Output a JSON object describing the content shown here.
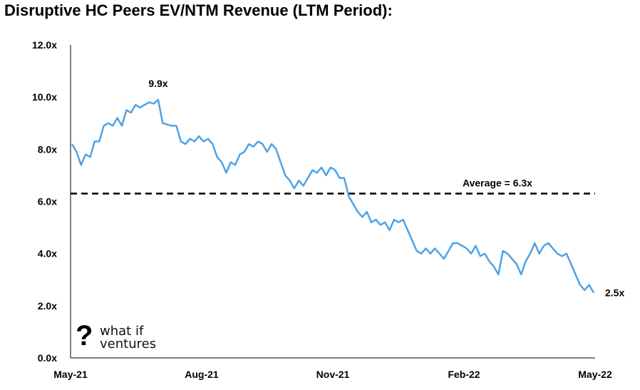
{
  "chart_data": {
    "type": "line",
    "title": "Disruptive HC Peers EV/NTM Revenue (LTM Period):",
    "xlabel": "",
    "ylabel": "",
    "x_ticks": [
      "May-21",
      "Aug-21",
      "Nov-21",
      "Feb-22",
      "May-22"
    ],
    "y_ticks": [
      "0.0x",
      "2.0x",
      "4.0x",
      "6.0x",
      "8.0x",
      "10.0x",
      "12.0x"
    ],
    "ylim": [
      0,
      12
    ],
    "x_range": [
      "May-21",
      "May-22"
    ],
    "grid": false,
    "line_color": "#4da3e8",
    "series": [
      {
        "values": [
          8.2,
          7.9,
          7.4,
          7.8,
          7.7,
          8.3,
          8.3,
          8.9,
          9.0,
          8.9,
          9.2,
          8.9,
          9.5,
          9.4,
          9.7,
          9.6,
          9.7,
          9.8,
          9.75,
          9.9,
          9.0,
          8.95,
          8.9,
          8.9,
          8.3,
          8.2,
          8.4,
          8.3,
          8.5,
          8.3,
          8.4,
          8.2,
          7.7,
          7.5,
          7.1,
          7.5,
          7.4,
          7.8,
          7.9,
          8.2,
          8.1,
          8.3,
          8.2,
          7.9,
          8.2,
          8.0,
          7.5,
          7.0,
          6.8,
          6.5,
          6.8,
          6.6,
          6.9,
          7.2,
          7.1,
          7.3,
          7.0,
          7.3,
          7.2,
          6.9,
          6.9,
          6.2,
          5.9,
          5.6,
          5.4,
          5.6,
          5.2,
          5.3,
          5.1,
          5.2,
          4.9,
          5.3,
          5.2,
          5.3,
          4.9,
          4.5,
          4.1,
          4.0,
          4.2,
          4.0,
          4.2,
          4.0,
          3.8,
          4.1,
          4.4,
          4.4,
          4.3,
          4.2,
          4.0,
          4.3,
          3.9,
          4.0,
          3.7,
          3.5,
          3.2,
          4.1,
          4.0,
          3.8,
          3.6,
          3.2,
          3.7,
          4.0,
          4.4,
          4.0,
          4.3,
          4.4,
          4.2,
          4.0,
          3.9,
          4.0,
          3.6,
          3.2,
          2.8,
          2.6,
          2.8,
          2.5
        ]
      },
      {
        "name": "Average = 6.3x",
        "type": "reference_line",
        "value": 6.3
      }
    ],
    "annotations": {
      "peak": "9.9x",
      "last": "2.5x",
      "average": "Average = 6.3x"
    }
  },
  "logo": {
    "mark": "?",
    "line1": "what if",
    "line2": "ventures"
  }
}
